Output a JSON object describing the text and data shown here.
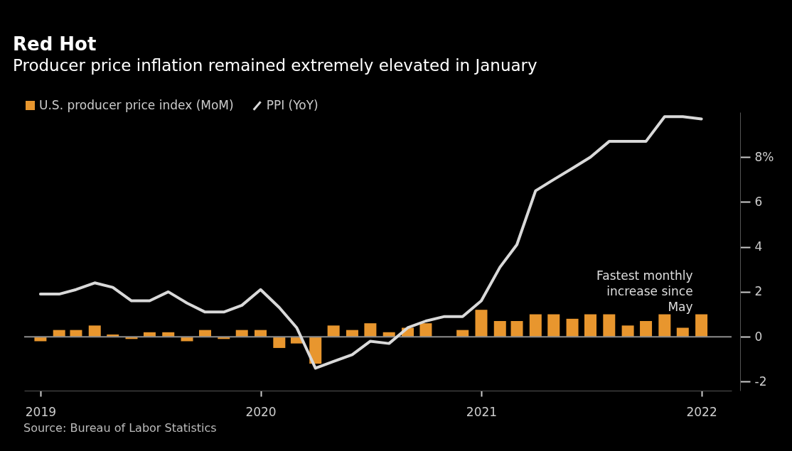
{
  "chart_data": {
    "type": "bar",
    "title": "Red Hot",
    "subtitle": "Producer price inflation remained extremely elevated in January",
    "x": [
      "2019-01",
      "2019-02",
      "2019-03",
      "2019-04",
      "2019-05",
      "2019-06",
      "2019-07",
      "2019-08",
      "2019-09",
      "2019-10",
      "2019-11",
      "2019-12",
      "2020-01",
      "2020-02",
      "2020-03",
      "2020-04",
      "2020-05",
      "2020-06",
      "2020-07",
      "2020-08",
      "2020-09",
      "2020-10",
      "2020-11",
      "2020-12",
      "2021-01",
      "2021-02",
      "2021-03",
      "2021-04",
      "2021-05",
      "2021-06",
      "2021-07",
      "2021-08",
      "2021-09",
      "2021-10",
      "2021-11",
      "2021-12",
      "2022-01"
    ],
    "series": [
      {
        "name": "U.S. producer price index (MoM)",
        "color": "#e8962e",
        "values": [
          -0.2,
          0.3,
          0.3,
          0.5,
          0.1,
          -0.1,
          0.2,
          0.2,
          -0.2,
          0.3,
          -0.1,
          0.3,
          0.3,
          -0.5,
          -0.3,
          -1.2,
          0.5,
          0.3,
          0.6,
          0.2,
          0.4,
          0.6,
          0.0,
          0.3,
          1.2,
          0.7,
          0.7,
          1.0,
          1.0,
          0.8,
          1.0,
          1.0,
          0.5,
          0.7,
          1.0,
          0.4,
          1.0
        ]
      },
      {
        "name": "PPI (YoY)",
        "type": "line",
        "color": "#d9d9d9",
        "values": [
          1.9,
          1.9,
          2.1,
          2.4,
          2.2,
          1.6,
          1.6,
          2.0,
          1.5,
          1.1,
          1.1,
          1.4,
          2.1,
          1.3,
          0.4,
          -1.4,
          -1.1,
          -0.8,
          -0.2,
          -0.3,
          0.4,
          0.7,
          0.9,
          0.9,
          1.6,
          3.1,
          4.1,
          6.5,
          7.0,
          7.5,
          8.0,
          8.7,
          8.7,
          8.7,
          9.8,
          9.8,
          9.7
        ]
      }
    ],
    "xlim": [
      "2018-12-05",
      "2022-02-20"
    ],
    "xticks": [
      "2019",
      "2020",
      "2021",
      "2022"
    ],
    "ylim": [
      -2.4,
      10
    ],
    "yticks": [
      -2,
      0,
      2,
      4,
      {
        "value": 6,
        "label": "6"
      },
      {
        "value": 8,
        "label": "8%"
      }
    ],
    "ref_lines": [
      {
        "axis": "y",
        "value": 0,
        "color": "#8c8c8c"
      }
    ],
    "annotations": [
      {
        "text": "Fastest monthly increase since May",
        "x": "2022-01",
        "y": 1.0
      },
      "Source: Bureau of Labor Statistics"
    ],
    "legend": "top left",
    "grid": false
  }
}
